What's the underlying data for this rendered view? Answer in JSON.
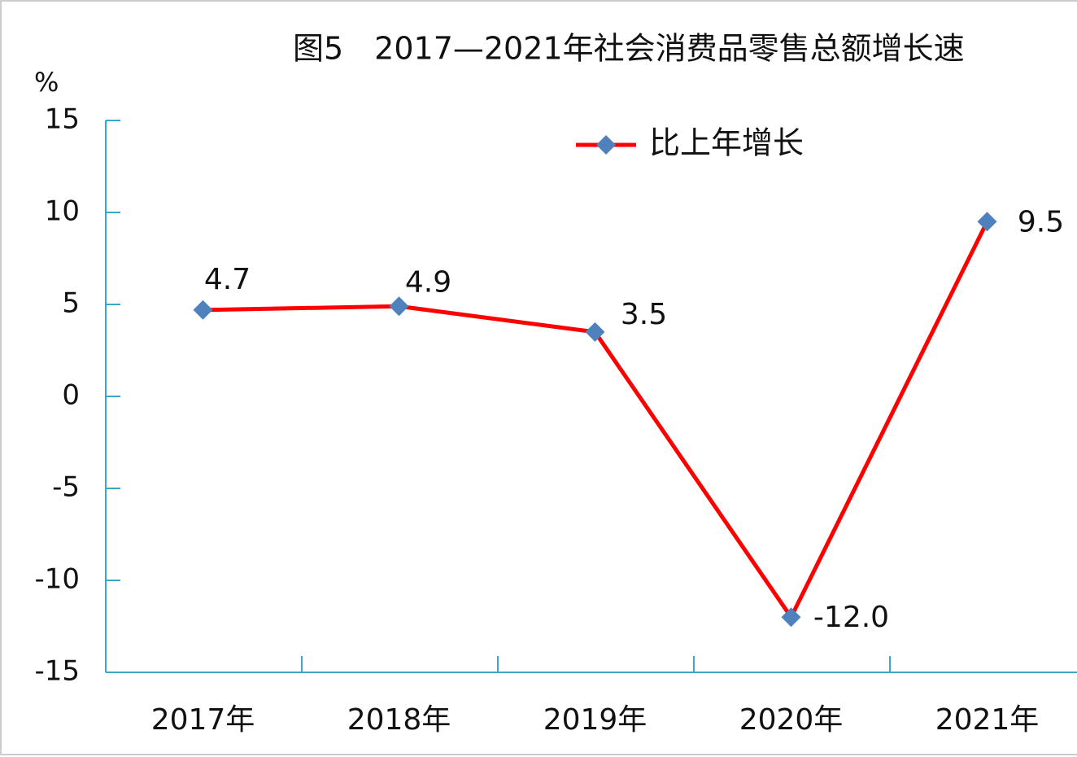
{
  "chart_data": {
    "type": "line",
    "title": "图5　2017—2021年社会消费品零售总额增长速",
    "y_label": "%",
    "categories": [
      "2017年",
      "2018年",
      "2019年",
      "2020年",
      "2021年"
    ],
    "series": [
      {
        "name": "比上年增长",
        "color": "#ff0000",
        "marker_color": "#4f81bd",
        "values": [
          4.7,
          4.9,
          3.5,
          -12.0,
          9.5
        ],
        "value_labels": [
          "4.7",
          "4.9",
          "3.5",
          "-12.0",
          "9.5"
        ]
      }
    ],
    "ylim": [
      -15,
      15
    ],
    "yticks": [
      -15,
      -10,
      -5,
      0,
      5,
      10,
      15
    ],
    "axis_color": "#3aa6c8"
  }
}
